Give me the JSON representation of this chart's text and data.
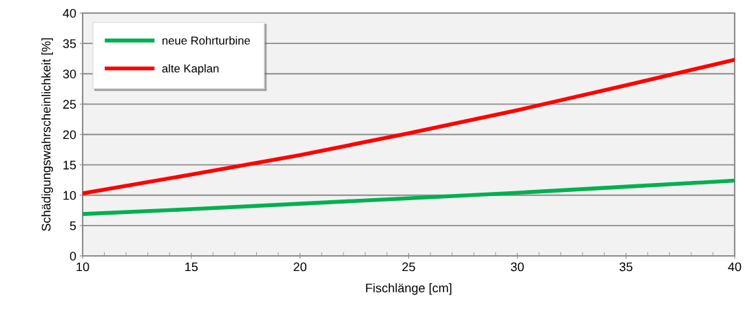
{
  "chart_data": {
    "type": "line",
    "xlabel": "Fischlänge [cm]",
    "ylabel": "Schädigungswahrscheinlichkeit [%]",
    "x": [
      10,
      15,
      20,
      25,
      30,
      35,
      40
    ],
    "series": [
      {
        "name": "neue Rohrturbine",
        "color": "#00b050",
        "values": [
          6.9,
          7.7,
          8.6,
          9.5,
          10.4,
          11.4,
          12.4
        ]
      },
      {
        "name": "alte Kaplan",
        "color": "#ff0000",
        "values": [
          10.3,
          13.4,
          16.6,
          20.2,
          24.0,
          28.1,
          32.3
        ]
      }
    ],
    "xlim": [
      10,
      40
    ],
    "xticks": [
      10,
      15,
      20,
      25,
      30,
      35,
      40
    ],
    "ylim": [
      0,
      40
    ],
    "yticks": [
      0,
      5,
      10,
      15,
      20,
      25,
      30,
      35,
      40
    ],
    "grid": "y",
    "legend": "top left",
    "marker": "none",
    "line_style": "solid"
  }
}
